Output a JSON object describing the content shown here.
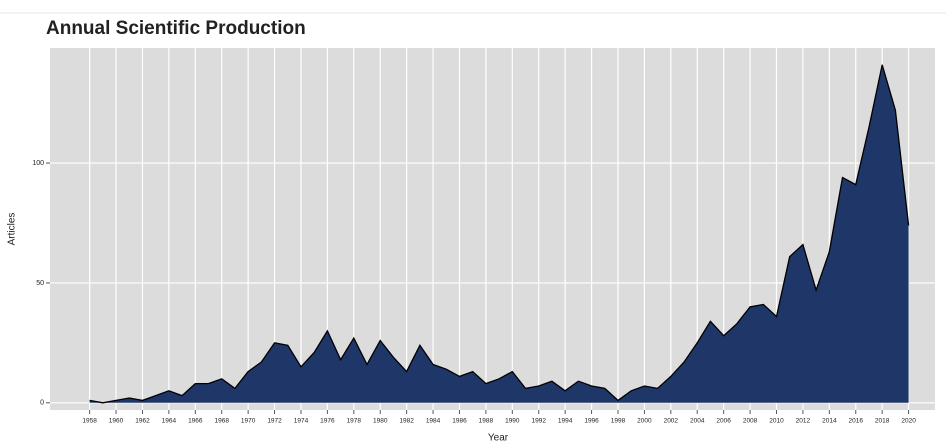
{
  "chart_data": {
    "type": "area",
    "title": "Annual Scientific Production",
    "xlabel": "Year",
    "ylabel": "Articles",
    "x": [
      1958,
      1959,
      1960,
      1961,
      1962,
      1963,
      1964,
      1965,
      1966,
      1967,
      1968,
      1969,
      1970,
      1971,
      1972,
      1973,
      1974,
      1975,
      1976,
      1977,
      1978,
      1979,
      1980,
      1981,
      1982,
      1983,
      1984,
      1985,
      1986,
      1987,
      1988,
      1989,
      1990,
      1991,
      1992,
      1993,
      1994,
      1995,
      1996,
      1997,
      1998,
      1999,
      2000,
      2001,
      2002,
      2003,
      2004,
      2005,
      2006,
      2007,
      2008,
      2009,
      2010,
      2011,
      2012,
      2013,
      2014,
      2015,
      2016,
      2017,
      2018,
      2019,
      2020
    ],
    "values": [
      1,
      0,
      1,
      2,
      1,
      3,
      5,
      3,
      8,
      8,
      10,
      6,
      13,
      17,
      25,
      24,
      15,
      21,
      30,
      18,
      27,
      16,
      26,
      19,
      13,
      24,
      16,
      14,
      11,
      13,
      8,
      10,
      13,
      6,
      7,
      9,
      5,
      9,
      7,
      6,
      1,
      5,
      7,
      6,
      11,
      17,
      25,
      34,
      28,
      33,
      40,
      41,
      36,
      61,
      66,
      47,
      63,
      94,
      91,
      115,
      141,
      122,
      74
    ],
    "color": "#1f3768",
    "xlim": [
      1955,
      2022
    ],
    "ylim": [
      -3,
      148
    ],
    "xticks": [
      1958,
      1960,
      1962,
      1964,
      1966,
      1968,
      1970,
      1972,
      1974,
      1976,
      1978,
      1980,
      1982,
      1984,
      1986,
      1988,
      1990,
      1992,
      1994,
      1996,
      1998,
      2000,
      2002,
      2004,
      2006,
      2008,
      2010,
      2012,
      2014,
      2016,
      2018,
      2020
    ],
    "yticks": [
      0,
      50,
      100
    ],
    "grid": true
  }
}
